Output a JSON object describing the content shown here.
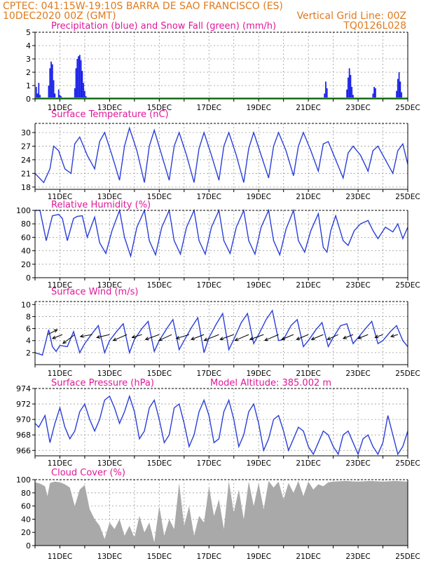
{
  "header": {
    "line1_left": "CPTEC:  041:15W-19:10S  BARRA DE SAO FRANCISCO (ES)",
    "line2_left": "10DEC2020 00Z (GMT)",
    "line2_right": "Vertical Grid Line: 00Z",
    "line3_right": "TQ0126L028"
  },
  "x_axis": {
    "start_day": 10,
    "end_day": 25,
    "tick_labels": [
      "11DEC",
      "13DEC",
      "15DEC",
      "17DEC",
      "19DEC",
      "21DEC",
      "23DEC",
      "25DEC"
    ]
  },
  "colors": {
    "line": "#2a3fd8",
    "bar": "#1a22e8",
    "snow": "#22b822",
    "cloud": "#a9a9a9",
    "title": "#e0179a",
    "header": "#e07a1c"
  },
  "chart_data": [
    {
      "type": "bar",
      "title": "Precipitation (blue) and Snow Fall (green) (mm/h)",
      "ylim": [
        0,
        5
      ],
      "yticks": [
        "0",
        "1",
        "2",
        "3",
        "4",
        "5"
      ],
      "series": [
        {
          "name": "Precipitation",
          "x": [
            10.05,
            10.1,
            10.15,
            10.2,
            10.55,
            10.6,
            10.65,
            10.7,
            10.75,
            10.8,
            10.95,
            11.0,
            11.05,
            11.6,
            11.65,
            11.7,
            11.75,
            11.8,
            11.85,
            11.9,
            11.95,
            12.0,
            12.05,
            21.65,
            21.7,
            21.75,
            22.55,
            22.6,
            22.65,
            22.7,
            22.75,
            22.8,
            23.6,
            23.65,
            23.7,
            24.55,
            24.6,
            24.65,
            24.7,
            24.75
          ],
          "values": [
            0.9,
            0.4,
            1.2,
            0.3,
            1.0,
            2.3,
            2.8,
            2.6,
            1.4,
            0.4,
            0.7,
            0.3,
            0.2,
            0.8,
            2.3,
            3.0,
            3.2,
            3.3,
            2.9,
            2.1,
            1.2,
            0.6,
            0.2,
            0.4,
            1.3,
            0.8,
            0.7,
            1.6,
            2.3,
            1.8,
            0.9,
            0.3,
            0.4,
            0.9,
            0.8,
            0.6,
            1.5,
            2.0,
            1.3,
            0.5
          ]
        },
        {
          "name": "Snow Fall",
          "x": [],
          "values": []
        }
      ]
    },
    {
      "type": "line",
      "title": "Surface Temperature (nC)",
      "ylim": [
        17.5,
        32
      ],
      "yticks": [
        "18",
        "21",
        "24",
        "27",
        "30"
      ],
      "ytick_values": [
        18,
        21,
        24,
        27,
        30
      ],
      "x": [
        10,
        10.35,
        10.6,
        10.75,
        10.95,
        11.2,
        11.45,
        11.6,
        11.8,
        12.1,
        12.4,
        12.6,
        12.8,
        13.1,
        13.4,
        13.6,
        13.8,
        14.1,
        14.4,
        14.6,
        14.8,
        15.1,
        15.4,
        15.6,
        15.8,
        16.1,
        16.4,
        16.6,
        16.8,
        17.1,
        17.4,
        17.6,
        17.8,
        18.1,
        18.4,
        18.6,
        18.8,
        19.1,
        19.4,
        19.6,
        19.8,
        20.1,
        20.4,
        20.6,
        20.8,
        21.1,
        21.4,
        21.6,
        21.8,
        22.1,
        22.4,
        22.6,
        22.8,
        23.1,
        23.4,
        23.6,
        23.8,
        24.1,
        24.4,
        24.6,
        24.8,
        25
      ],
      "values": [
        21.0,
        19.0,
        22.0,
        27.0,
        26.0,
        22.0,
        21.0,
        27.5,
        29.0,
        25.0,
        22.0,
        28.0,
        30.0,
        25.0,
        19.5,
        27.0,
        31.0,
        26.0,
        19.0,
        27.0,
        30.5,
        25.0,
        19.5,
        27.0,
        30.0,
        25.0,
        19.0,
        26.5,
        30.0,
        25.0,
        19.5,
        27.0,
        30.0,
        25.0,
        19.0,
        26.5,
        30.0,
        25.0,
        20.0,
        27.0,
        30.0,
        26.0,
        20.5,
        27.0,
        30.0,
        26.0,
        21.5,
        27.5,
        28.0,
        24.0,
        20.0,
        25.5,
        27.0,
        25.0,
        21.5,
        26.0,
        27.0,
        24.0,
        21.0,
        26.0,
        27.5,
        23.0
      ]
    },
    {
      "type": "line",
      "title": "Relative Humidity (%)",
      "ylim": [
        0,
        100
      ],
      "yticks": [
        "0",
        "20",
        "40",
        "60",
        "80",
        "100"
      ],
      "ytick_values": [
        0,
        20,
        40,
        60,
        80,
        100
      ],
      "x": [
        10,
        10.2,
        10.45,
        10.7,
        10.95,
        11.1,
        11.3,
        11.55,
        11.7,
        11.9,
        12.1,
        12.4,
        12.6,
        12.85,
        13.1,
        13.4,
        13.6,
        13.85,
        14.1,
        14.4,
        14.6,
        14.85,
        15.1,
        15.4,
        15.6,
        15.85,
        16.1,
        16.4,
        16.6,
        16.85,
        17.1,
        17.4,
        17.6,
        17.85,
        18.1,
        18.4,
        18.6,
        18.85,
        19.1,
        19.4,
        19.6,
        19.85,
        20.1,
        20.4,
        20.6,
        20.85,
        21.1,
        21.4,
        21.6,
        21.75,
        21.9,
        22.1,
        22.4,
        22.6,
        22.85,
        23.1,
        23.4,
        23.6,
        23.8,
        24.1,
        24.4,
        24.6,
        24.8,
        25
      ],
      "values": [
        100,
        100,
        55,
        92,
        94,
        88,
        55,
        88,
        91,
        92,
        60,
        90,
        52,
        36,
        70,
        100,
        60,
        32,
        75,
        100,
        55,
        34,
        75,
        100,
        55,
        35,
        75,
        100,
        55,
        35,
        75,
        100,
        55,
        36,
        75,
        100,
        55,
        35,
        75,
        100,
        55,
        34,
        72,
        100,
        55,
        38,
        70,
        95,
        45,
        38,
        70,
        92,
        55,
        48,
        70,
        80,
        85,
        70,
        58,
        75,
        68,
        80,
        58,
        75
      ]
    },
    {
      "type": "line",
      "title": "Surface Wind (m/s)",
      "ylim": [
        0,
        10.5
      ],
      "yticks": [
        "2",
        "4",
        "6",
        "8",
        "10"
      ],
      "ytick_values": [
        2,
        4,
        6,
        8,
        10
      ],
      "x": [
        10,
        10.3,
        10.55,
        10.7,
        10.85,
        11.0,
        11.3,
        11.55,
        11.8,
        12.0,
        12.3,
        12.55,
        12.8,
        13.0,
        13.3,
        13.55,
        13.8,
        14.0,
        14.3,
        14.55,
        14.8,
        15.0,
        15.3,
        15.55,
        15.8,
        16.0,
        16.3,
        16.55,
        16.8,
        17.0,
        17.3,
        17.55,
        17.8,
        18.0,
        18.3,
        18.55,
        18.8,
        19.0,
        19.3,
        19.55,
        19.8,
        20.0,
        20.3,
        20.55,
        20.8,
        21.0,
        21.3,
        21.55,
        21.8,
        22.0,
        22.3,
        22.55,
        22.8,
        23.0,
        23.3,
        23.55,
        23.8,
        24.0,
        24.3,
        24.55,
        24.8,
        25
      ],
      "values": [
        2.0,
        1.6,
        5.8,
        3.0,
        2.2,
        3.2,
        3.0,
        5.5,
        2.0,
        3.5,
        5.2,
        6.5,
        2.0,
        4.0,
        5.6,
        6.8,
        2.0,
        4.2,
        6.0,
        7.2,
        2.2,
        4.0,
        6.0,
        7.5,
        2.5,
        4.0,
        6.2,
        7.8,
        2.0,
        4.5,
        6.8,
        8.5,
        2.5,
        4.2,
        7.0,
        8.5,
        3.5,
        5.0,
        7.5,
        9.0,
        4.0,
        4.2,
        6.5,
        7.5,
        3.0,
        4.0,
        5.8,
        7.0,
        3.0,
        4.5,
        6.5,
        6.8,
        3.5,
        4.5,
        6.0,
        7.2,
        3.5,
        4.0,
        5.5,
        6.5,
        4.0,
        3.0
      ],
      "arrows": {
        "x": [
          10.5,
          11.1,
          11.6,
          12.3,
          13.0,
          13.7,
          14.3,
          15.0,
          15.5,
          16.2,
          16.8,
          17.4,
          18.0,
          18.6,
          19.2,
          19.8,
          20.4,
          21.0,
          21.6,
          22.2,
          22.8,
          23.4,
          24.0,
          24.6
        ],
        "u": [
          1.0,
          -1.0,
          -1.2,
          -1.2,
          -1.3,
          -1.4,
          -1.0,
          -1.4,
          -1.3,
          -1.3,
          -1.3,
          -1.5,
          -1.4,
          -1.4,
          -1.4,
          -1.4,
          -1.2,
          -1.2,
          -1.2,
          -1.1,
          -1.0,
          -1.0,
          -0.8,
          -0.7
        ],
        "v": [
          0.5,
          -0.4,
          -0.9,
          -0.2,
          -0.3,
          -0.6,
          -0.3,
          -0.5,
          -0.6,
          -0.4,
          -0.5,
          -0.6,
          -0.5,
          -0.6,
          -0.5,
          -0.6,
          -0.5,
          -0.5,
          -0.5,
          -0.5,
          -0.4,
          -0.4,
          -0.3,
          -0.2
        ]
      }
    },
    {
      "type": "line",
      "title": "Surface Pressure (hPa)",
      "annotation": "Model Altitude: 385.002 m",
      "ylim": [
        965.3,
        974
      ],
      "yticks": [
        "966",
        "968",
        "970",
        "972",
        "974"
      ],
      "ytick_values": [
        966,
        968,
        970,
        972,
        974
      ],
      "x": [
        10,
        10.15,
        10.4,
        10.6,
        10.8,
        11.0,
        11.2,
        11.4,
        11.6,
        11.8,
        12.0,
        12.2,
        12.4,
        12.6,
        12.8,
        13.0,
        13.2,
        13.4,
        13.6,
        13.8,
        14.0,
        14.2,
        14.4,
        14.6,
        14.8,
        15.0,
        15.2,
        15.4,
        15.6,
        15.8,
        16.0,
        16.2,
        16.4,
        16.6,
        16.8,
        17.0,
        17.2,
        17.4,
        17.6,
        17.8,
        18.0,
        18.2,
        18.4,
        18.6,
        18.8,
        19.0,
        19.2,
        19.4,
        19.6,
        19.8,
        20.0,
        20.2,
        20.4,
        20.6,
        20.8,
        21.0,
        21.2,
        21.4,
        21.6,
        21.8,
        22.0,
        22.2,
        22.4,
        22.6,
        22.8,
        23.0,
        23.2,
        23.4,
        23.6,
        23.8,
        24.0,
        24.2,
        24.4,
        24.6,
        24.8,
        25
      ],
      "values": [
        969.5,
        969.0,
        970.5,
        967.0,
        969.5,
        971.5,
        969.0,
        967.5,
        968.5,
        971.0,
        972.0,
        970.0,
        968.5,
        970.0,
        972.5,
        973.0,
        971.5,
        969.5,
        971.0,
        973.0,
        971.0,
        967.5,
        968.5,
        971.5,
        972.5,
        970.0,
        967.0,
        968.0,
        971.5,
        972.0,
        969.5,
        966.5,
        968.0,
        971.0,
        972.5,
        970.5,
        967.0,
        967.5,
        971.0,
        972.5,
        970.0,
        966.5,
        968.0,
        971.0,
        972.0,
        969.5,
        966.0,
        967.5,
        970.0,
        970.5,
        968.5,
        966.0,
        967.5,
        969.0,
        968.5,
        966.5,
        965.5,
        967.0,
        968.5,
        968.0,
        966.5,
        965.5,
        968.0,
        968.5,
        967.0,
        965.5,
        967.5,
        968.0,
        966.5,
        965.5,
        967.0,
        970.5,
        968.0,
        965.5,
        966.5,
        968.5
      ]
    },
    {
      "type": "area",
      "title": "Cloud Cover (%)",
      "ylim": [
        0,
        100
      ],
      "yticks": [
        "0",
        "20",
        "40",
        "60",
        "80",
        "100"
      ],
      "ytick_values": [
        0,
        20,
        40,
        60,
        80,
        100
      ],
      "x": [
        10,
        10.2,
        10.4,
        10.5,
        10.6,
        10.8,
        11.0,
        11.2,
        11.4,
        11.6,
        11.8,
        12.0,
        12.2,
        12.4,
        12.6,
        12.8,
        13.0,
        13.2,
        13.4,
        13.6,
        13.8,
        14.0,
        14.2,
        14.4,
        14.6,
        14.8,
        15.0,
        15.2,
        15.4,
        15.6,
        15.8,
        16.0,
        16.2,
        16.4,
        16.6,
        16.8,
        17.0,
        17.2,
        17.4,
        17.6,
        17.8,
        18.0,
        18.2,
        18.4,
        18.6,
        18.8,
        19.0,
        19.2,
        19.4,
        19.6,
        19.8,
        20.0,
        20.2,
        20.4,
        20.6,
        20.8,
        21.0,
        21.2,
        21.4,
        21.6,
        21.8,
        22.0,
        22.5,
        23.0,
        23.5,
        24.0,
        24.5,
        25
      ],
      "values": [
        96,
        94,
        90,
        75,
        95,
        97,
        96,
        93,
        88,
        60,
        85,
        92,
        55,
        40,
        30,
        10,
        35,
        25,
        40,
        15,
        30,
        12,
        45,
        20,
        35,
        5,
        60,
        15,
        40,
        25,
        95,
        30,
        60,
        15,
        45,
        35,
        90,
        45,
        70,
        25,
        98,
        50,
        85,
        40,
        97,
        60,
        95,
        55,
        98,
        88,
        97,
        70,
        95,
        80,
        98,
        75,
        97,
        85,
        93,
        90,
        96,
        97,
        98,
        97,
        98,
        97,
        98,
        97
      ]
    }
  ]
}
